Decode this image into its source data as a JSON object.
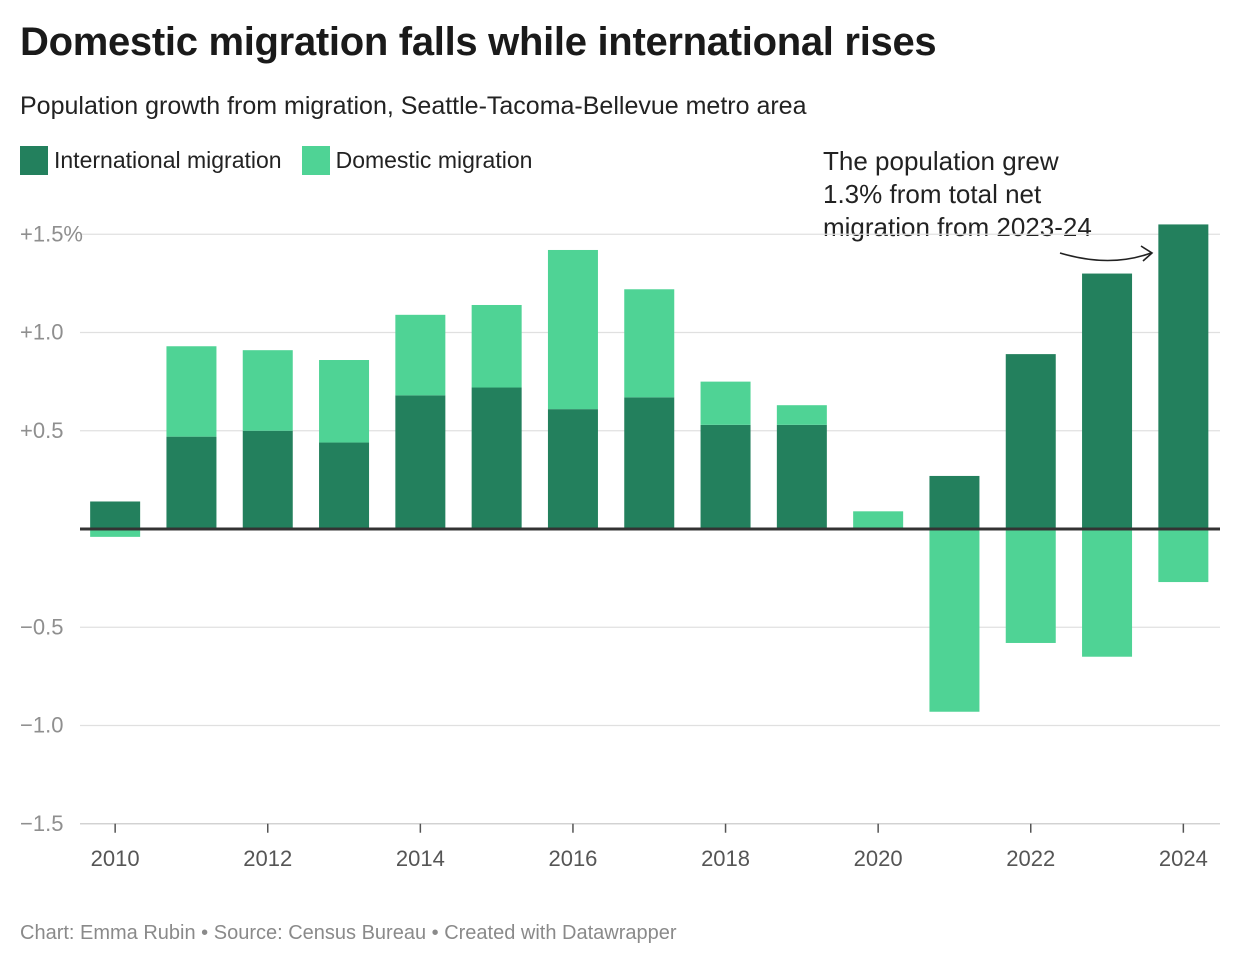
{
  "header": {
    "title": "Domestic migration falls while international rises",
    "subtitle": "Population growth from migration, Seattle-Tacoma-Bellevue metro area"
  },
  "annotation": {
    "lines": [
      "The population grew",
      "1.3% from total net",
      "migration from 2023-24"
    ]
  },
  "footer": {
    "credit": "Chart: Emma Rubin • Source: Census Bureau • Created with Datawrapper"
  },
  "colors": {
    "international": "#23805d",
    "domestic": "#4fd395",
    "zero_line": "#333333",
    "grid": "#e0e0e0"
  },
  "chart_data": {
    "type": "bar",
    "stacked": true,
    "categories": [
      "2010",
      "2011",
      "2012",
      "2013",
      "2014",
      "2015",
      "2016",
      "2017",
      "2018",
      "2019",
      "2020",
      "2021",
      "2022",
      "2023",
      "2024"
    ],
    "x_tick_labels": [
      "2010",
      "2012",
      "2014",
      "2016",
      "2018",
      "2020",
      "2022",
      "2024"
    ],
    "series": [
      {
        "name": "International migration",
        "color": "#23805d",
        "values": [
          0.14,
          0.47,
          0.5,
          0.44,
          0.68,
          0.72,
          0.61,
          0.67,
          0.53,
          0.53,
          0.0,
          0.27,
          0.89,
          1.3,
          1.55
        ]
      },
      {
        "name": "Domestic migration",
        "color": "#4fd395",
        "values": [
          -0.04,
          0.46,
          0.41,
          0.42,
          0.41,
          0.42,
          0.81,
          0.55,
          0.22,
          0.1,
          0.09,
          -0.93,
          -0.58,
          -0.65,
          -0.27
        ]
      }
    ],
    "y_ticks": [
      {
        "value": 1.5,
        "label": "+1.5%"
      },
      {
        "value": 1.0,
        "label": "+1.0"
      },
      {
        "value": 0.5,
        "label": "+0.5"
      },
      {
        "value": -0.5,
        "label": "−0.5"
      },
      {
        "value": -1.0,
        "label": "−1.0"
      },
      {
        "value": -1.5,
        "label": "−1.5"
      }
    ],
    "ylim": [
      -1.5,
      1.5
    ],
    "grid": true,
    "legend_position": "top-left"
  }
}
